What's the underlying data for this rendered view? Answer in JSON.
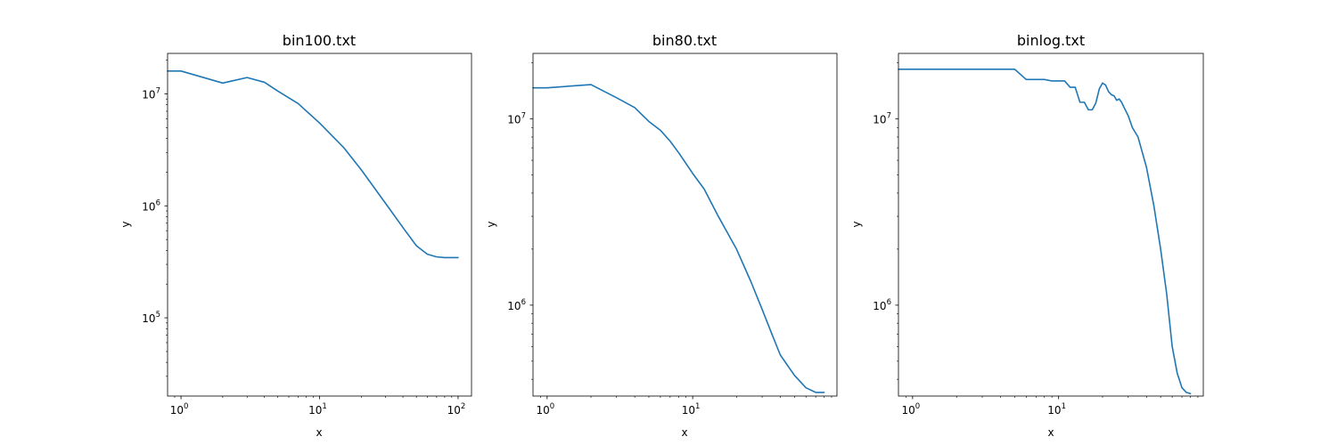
{
  "colors": {
    "series": "#1f77b4"
  },
  "chart_data": [
    {
      "type": "line",
      "title": "bin100.txt",
      "xlabel": "x",
      "ylabel": "y",
      "xscale": "log",
      "yscale": "log",
      "xlim": [
        0.8,
        125
      ],
      "ylim": [
        20000,
        23000000
      ],
      "x_ticks": [
        1,
        10,
        100
      ],
      "x_tick_labels": [
        {
          "base": "10",
          "exp": "0"
        },
        {
          "base": "10",
          "exp": "1"
        },
        {
          "base": "10",
          "exp": "2"
        }
      ],
      "y_ticks": [
        100000,
        1000000,
        10000000
      ],
      "y_tick_labels": [
        {
          "base": "10",
          "exp": "5"
        },
        {
          "base": "10",
          "exp": "6"
        },
        {
          "base": "10",
          "exp": "7"
        }
      ],
      "series": [
        {
          "x": [
            0.8,
            1,
            2,
            3,
            4,
            5,
            7,
            10,
            15,
            20,
            30,
            40,
            50,
            60,
            70,
            80,
            90,
            100
          ],
          "y": [
            16000000,
            16000000,
            12500000,
            14000000,
            12700000,
            10600000,
            8200000,
            5500000,
            3300000,
            2100000,
            1050000,
            640000,
            440000,
            370000,
            350000,
            345000,
            345000,
            345000
          ]
        }
      ]
    },
    {
      "type": "line",
      "title": "bin80.txt",
      "xlabel": "x",
      "ylabel": "y",
      "xscale": "log",
      "yscale": "log",
      "xlim": [
        0.8,
        98
      ],
      "ylim": [
        325000,
        22500000
      ],
      "x_ticks": [
        1,
        10
      ],
      "x_tick_labels": [
        {
          "base": "10",
          "exp": "0"
        },
        {
          "base": "10",
          "exp": "1"
        }
      ],
      "y_ticks": [
        1000000,
        10000000
      ],
      "y_tick_labels": [
        {
          "base": "10",
          "exp": "6"
        },
        {
          "base": "10",
          "exp": "7"
        }
      ],
      "series": [
        {
          "x": [
            0.8,
            1,
            2,
            3,
            4,
            5,
            6,
            7,
            8,
            10,
            12,
            15,
            20,
            25,
            30,
            35,
            40,
            50,
            60,
            70,
            80
          ],
          "y": [
            14700000,
            14700000,
            15300000,
            13000000,
            11500000,
            9700000,
            8700000,
            7600000,
            6600000,
            5100000,
            4200000,
            3000000,
            2000000,
            1350000,
            950000,
            700000,
            540000,
            420000,
            360000,
            340000,
            340000
          ]
        }
      ]
    },
    {
      "type": "line",
      "title": "binlog.txt",
      "xlabel": "x",
      "ylabel": "y",
      "xscale": "log",
      "yscale": "log",
      "xlim": [
        0.8,
        98
      ],
      "ylim": [
        325000,
        22500000
      ],
      "x_ticks": [
        1,
        10
      ],
      "x_tick_labels": [
        {
          "base": "10",
          "exp": "0"
        },
        {
          "base": "10",
          "exp": "1"
        }
      ],
      "y_ticks": [
        1000000,
        10000000
      ],
      "y_tick_labels": [
        {
          "base": "10",
          "exp": "6"
        },
        {
          "base": "10",
          "exp": "7"
        }
      ],
      "series": [
        {
          "x": [
            0.8,
            1,
            2,
            3,
            4,
            5,
            6,
            7,
            8,
            9,
            10,
            11,
            12,
            13,
            14,
            15,
            16,
            17,
            18,
            19,
            20,
            21,
            22,
            23,
            24,
            25,
            26,
            27,
            28,
            30,
            32,
            35,
            40,
            45,
            50,
            55,
            60,
            65,
            70,
            75,
            80
          ],
          "y": [
            18500000,
            18500000,
            18500000,
            18500000,
            18500000,
            18500000,
            16300000,
            16300000,
            16300000,
            16000000,
            16000000,
            16000000,
            14800000,
            14800000,
            12300000,
            12300000,
            11200000,
            11200000,
            12200000,
            14500000,
            15600000,
            15200000,
            14000000,
            13500000,
            13300000,
            12600000,
            12800000,
            12300000,
            11600000,
            10400000,
            9000000,
            8000000,
            5500000,
            3400000,
            2000000,
            1150000,
            600000,
            430000,
            360000,
            340000,
            335000
          ]
        }
      ]
    }
  ]
}
